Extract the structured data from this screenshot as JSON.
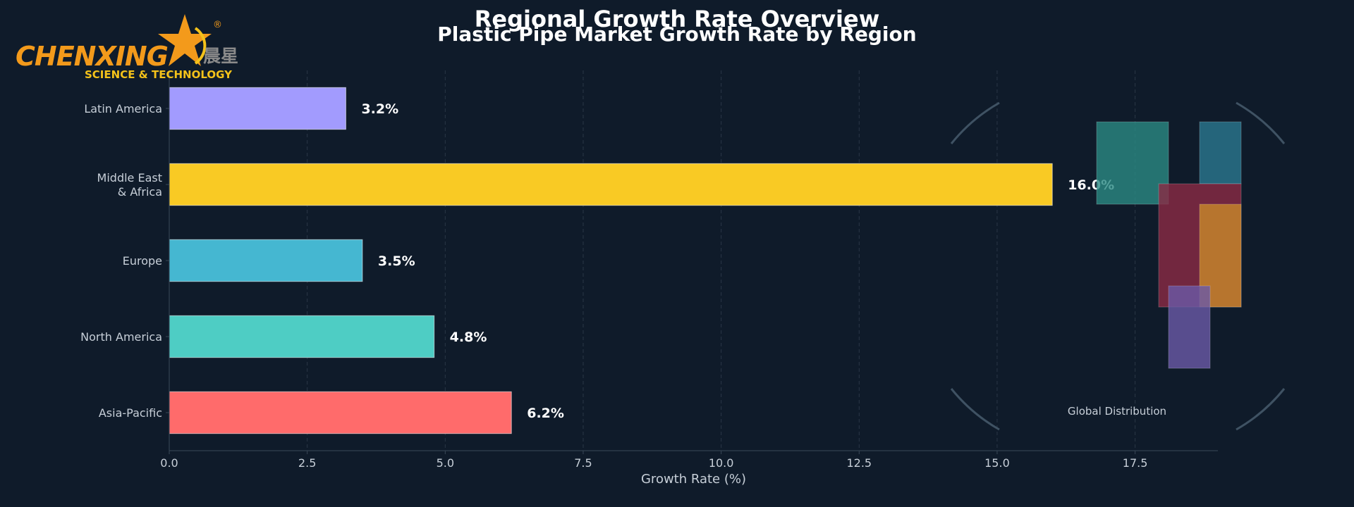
{
  "title": "Regional Growth Rate Overview",
  "subtitle": "Plastic Pipe Market Growth Rate by Region",
  "logo": {
    "name": "CHENXING",
    "tagline": "SCIENCE & TECHNOLOGY",
    "chinese": "晨星",
    "registered": "®"
  },
  "colors": {
    "background": "#0f1b2a",
    "text": "#c7cfd8",
    "axis": "#3a4858",
    "grid": "#2a3646"
  },
  "chart_data": {
    "type": "bar",
    "orientation": "horizontal",
    "xlabel": "Growth Rate (%)",
    "ylabel": "",
    "xlim": [
      0,
      19
    ],
    "xticks": [
      "0.0",
      "2.5",
      "5.0",
      "7.5",
      "10.0",
      "12.5",
      "15.0",
      "17.5"
    ],
    "xtick_values": [
      0,
      2.5,
      5,
      7.5,
      10,
      12.5,
      15,
      17.5
    ],
    "categories": [
      "Asia-Pacific",
      "North America",
      "Europe",
      "Middle East\n& Africa",
      "Latin America"
    ],
    "values": [
      6.2,
      4.8,
      3.5,
      16.0,
      3.2
    ],
    "value_labels": [
      "6.2%",
      "4.8%",
      "3.5%",
      "16.0%",
      "3.2%"
    ],
    "bar_colors": [
      "#ff6b6b",
      "#4ecdc4",
      "#45b7d1",
      "#f9ca24",
      "#a29bfe"
    ],
    "grid": "vertical dashed",
    "inset": {
      "label": "Global Distribution",
      "blocks": [
        {
          "color": "#2a8a83"
        },
        {
          "color": "#2a7890"
        },
        {
          "color": "#8b2a45"
        },
        {
          "color": "#c88a2a"
        },
        {
          "color": "#6a5aa8"
        }
      ]
    }
  }
}
